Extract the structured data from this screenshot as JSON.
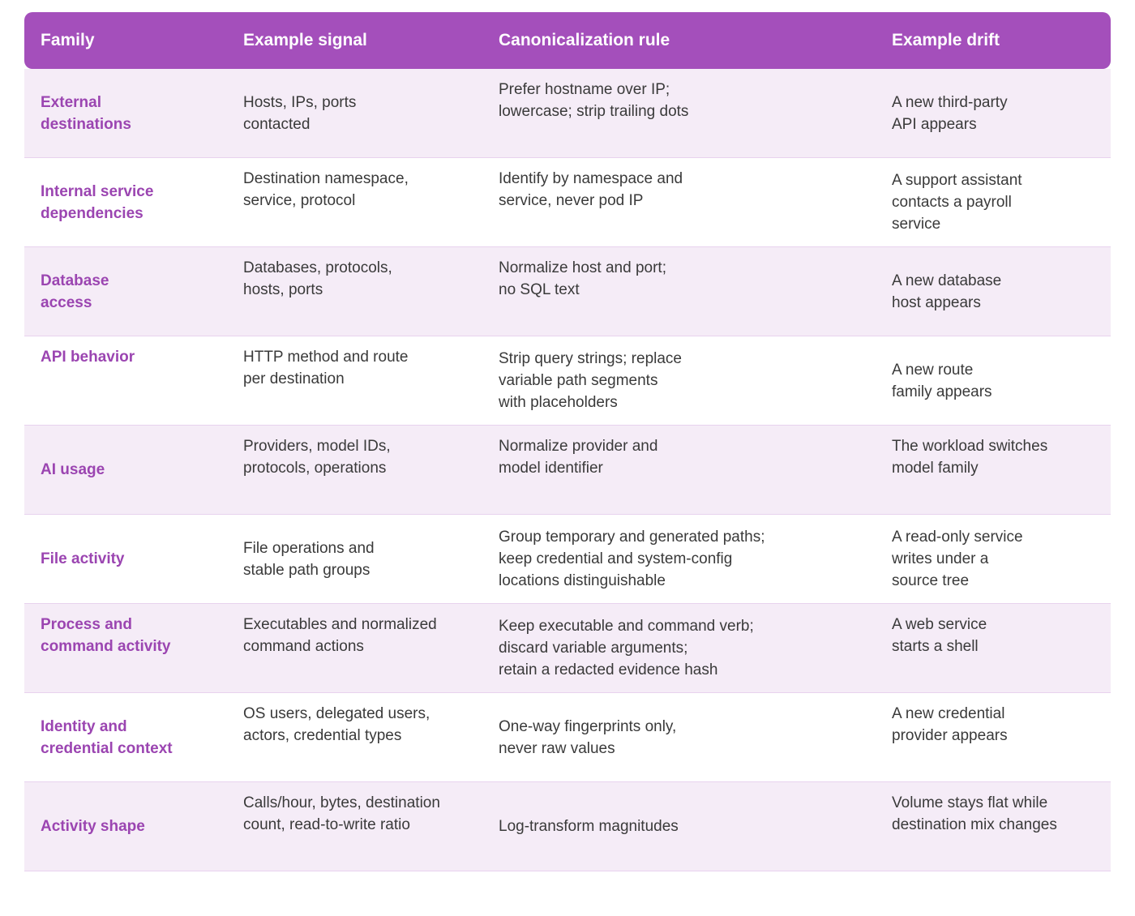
{
  "table": {
    "headers": [
      "Family",
      "Example signal",
      "Canonicalization rule",
      "Example drift"
    ],
    "rows": [
      {
        "family": "External\ndestinations",
        "signal": "Hosts, IPs, ports\ncontacted",
        "rule": "Prefer hostname over IP;\nlowercase; strip trailing dots",
        "drift": "A new third-party\nAPI appears"
      },
      {
        "family": "Internal service\ndependencies",
        "signal": "Destination namespace,\nservice, protocol",
        "rule": "Identify by namespace and\nservice, never pod IP",
        "drift": "A support assistant\ncontacts a payroll\nservice"
      },
      {
        "family": "Database\naccess",
        "signal": "Databases, protocols,\nhosts, ports",
        "rule": "Normalize host and port;\nno SQL text",
        "drift": "A new database\nhost appears"
      },
      {
        "family": "API behavior",
        "signal": "HTTP method and route\nper destination",
        "rule": "Strip query strings; replace\nvariable path segments\nwith placeholders",
        "drift": "A new route\nfamily appears"
      },
      {
        "family": "AI usage",
        "signal": "Providers, model IDs,\nprotocols, operations",
        "rule": "Normalize provider and\nmodel identifier",
        "drift": "The workload switches\nmodel family"
      },
      {
        "family": "File activity",
        "signal": "File operations and\nstable path groups",
        "rule": "Group temporary and generated paths;\nkeep credential and system-config\nlocations distinguishable",
        "drift": "A read-only service\nwrites under a\nsource tree"
      },
      {
        "family": "Process and\ncommand activity",
        "signal": "Executables and normalized\ncommand actions",
        "rule": "Keep executable and command verb;\ndiscard variable arguments;\nretain a redacted evidence hash",
        "drift": "A web service\nstarts a shell"
      },
      {
        "family": "Identity and\ncredential context",
        "signal": "OS users, delegated users,\nactors, credential types",
        "rule": "One-way fingerprints only,\nnever raw values",
        "drift": "A new credential\nprovider appears"
      },
      {
        "family": "Activity shape",
        "signal": "Calls/hour, bytes, destination\ncount, read-to-write ratio",
        "rule": "Log-transform magnitudes",
        "drift": "Volume stays flat while\ndestination mix changes"
      }
    ]
  }
}
